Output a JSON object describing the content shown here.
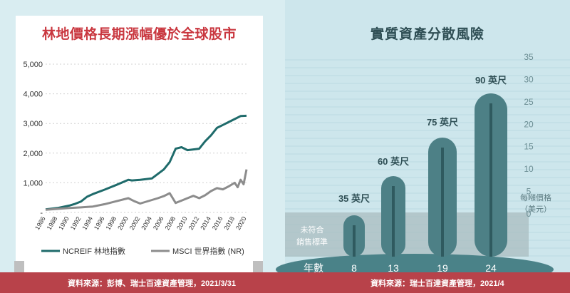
{
  "left": {
    "title": "林地價格長期漲幅優於全球股市",
    "source": "資料來源：彭博、瑞士百達資產管理，2021/3/31"
  },
  "right": {
    "title": "實質資產分散風險",
    "source": "資料來源：瑞士百達資產管理，2021/4",
    "ylabel_line1": "每噸價格",
    "ylabel_line2": "（美元）",
    "band_label_line1": "未符合",
    "band_label_line2": "銷售標準",
    "year_label": "年數"
  },
  "colors": {
    "ncreif": "#1f6b6b",
    "msci": "#8c8c8c",
    "title_red": "#c9373f",
    "footer": "#b8424a",
    "tree": "#4d8086"
  },
  "chart_data": [
    {
      "type": "line",
      "title": "林地價格長期漲幅優於全球股市",
      "x_ticks": [
        "1986",
        "1988",
        "1990",
        "1992",
        "1994",
        "1996",
        "1998",
        "2000",
        "2002",
        "2004",
        "2006",
        "2008",
        "2010",
        "2012",
        "2014",
        "2016",
        "2018",
        "2020"
      ],
      "y_ticks": [
        "-",
        "1,000",
        "2,000",
        "3,000",
        "4,000",
        "5,000"
      ],
      "ylim": [
        0,
        5000
      ],
      "xlim": [
        1986,
        2020
      ],
      "grid": true,
      "legend": "bottom",
      "series": [
        {
          "name": "NCREIF 林地指數",
          "x": [
            1986,
            1988,
            1990,
            1991,
            1992,
            1993,
            1994,
            1996,
            1998,
            2000,
            2000.6,
            2002,
            2004,
            2005,
            2006,
            2007,
            2008,
            2009,
            2010,
            2012,
            2013,
            2014,
            2015,
            2016,
            2017,
            2018,
            2019,
            2020
          ],
          "values": [
            100,
            150,
            230,
            290,
            370,
            530,
            620,
            770,
            930,
            1100,
            1080,
            1100,
            1150,
            1300,
            1450,
            1700,
            2150,
            2200,
            2100,
            2150,
            2400,
            2600,
            2850,
            2950,
            3050,
            3150,
            3250,
            3260
          ]
        },
        {
          "name": "MSCI 世界指數 (NR)",
          "x": [
            1986,
            1988,
            1990,
            1992,
            1994,
            1996,
            1998,
            2000,
            2001,
            2002,
            2003,
            2004,
            2005,
            2006,
            2007,
            2008,
            2009,
            2010,
            2011,
            2012,
            2013,
            2014,
            2015,
            2016,
            2017,
            2018,
            2018.5,
            2019,
            2019.5,
            2020
          ],
          "values": [
            90,
            120,
            150,
            170,
            200,
            280,
            380,
            480,
            380,
            300,
            360,
            420,
            480,
            550,
            650,
            320,
            400,
            480,
            560,
            480,
            580,
            720,
            820,
            780,
            880,
            1000,
            850,
            1100,
            950,
            1450
          ]
        }
      ]
    },
    {
      "type": "bar",
      "title": "實質資產分散風險",
      "categories": [
        "8",
        "13",
        "19",
        "24"
      ],
      "labels": [
        "35 英尺",
        "60 英尺",
        "75 英尺",
        "90 英尺"
      ],
      "y_ticks": [
        "35",
        "30",
        "25",
        "20",
        "15",
        "10",
        "5",
        "0"
      ],
      "ylim": [
        0,
        35
      ]
    }
  ]
}
